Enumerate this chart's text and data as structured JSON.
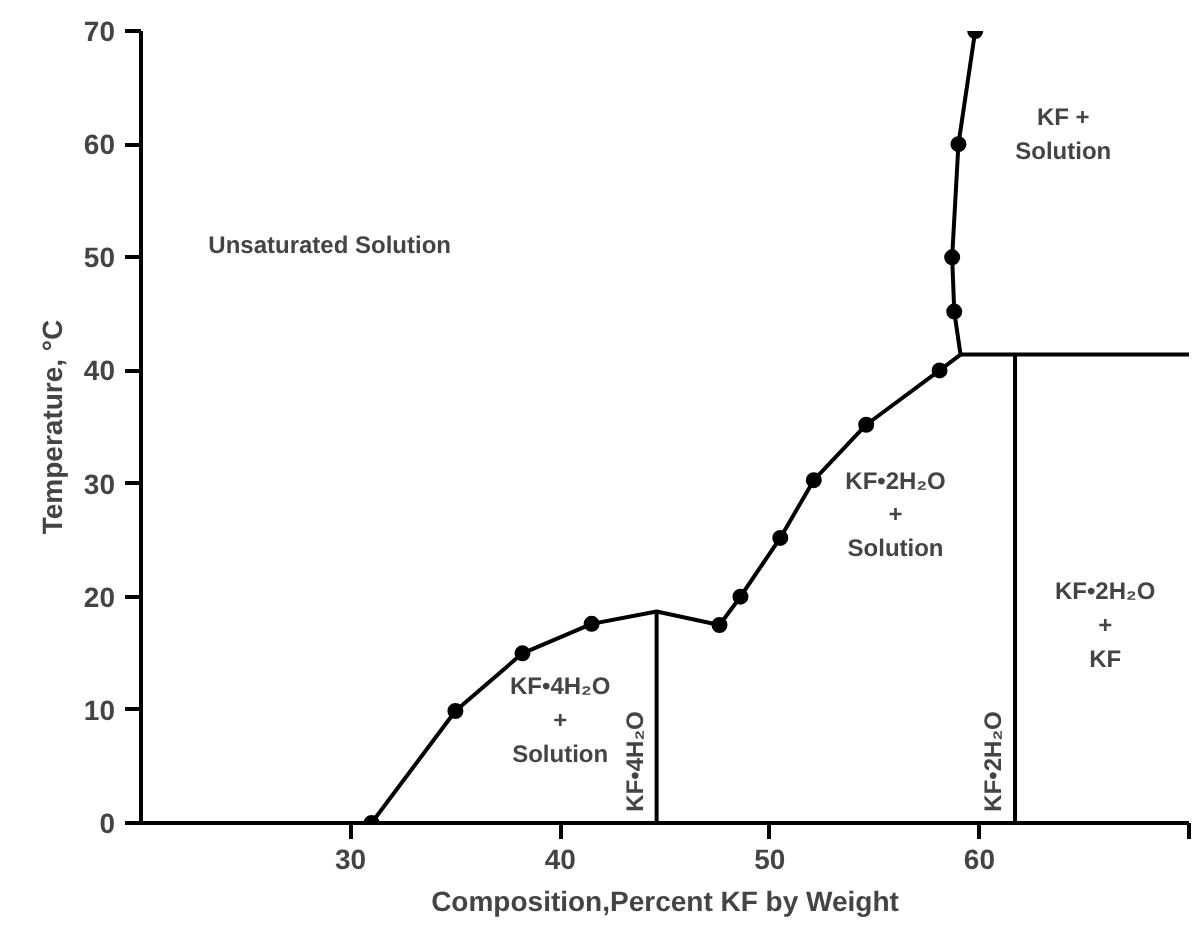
{
  "chart_data": {
    "type": "line",
    "xlabel": "Composition,Percent KF by Weight",
    "ylabel": "Temperature, °C",
    "xlim": [
      20,
      70
    ],
    "ylim": [
      0,
      70
    ],
    "xticks": [
      30,
      40,
      50,
      60,
      {
        "value": 70,
        "label": null
      }
    ],
    "yticks": [
      0,
      10,
      20,
      30,
      40,
      50,
      60,
      70
    ],
    "grid": false,
    "series": [
      {
        "color": "#000000",
        "marker": "none",
        "x": [
          31.0,
          35.0,
          38.2,
          41.5,
          44.6,
          47.6,
          48.6,
          50.5,
          52.1,
          54.6,
          58.1,
          59.1,
          58.8,
          58.7,
          59.0,
          59.8
        ],
        "values": [
          0,
          9.9,
          15.0,
          17.6,
          18.7,
          17.5,
          20.0,
          25.2,
          30.3,
          35.2,
          40.0,
          41.4,
          45.2,
          50.0,
          60.0,
          70.0
        ]
      },
      {
        "type": "scatter",
        "color": "#000000",
        "marker": "circle",
        "x": [
          31.0,
          35.0,
          38.2,
          41.5,
          47.6,
          48.6,
          50.5,
          52.1,
          54.6,
          58.1,
          58.8,
          58.7,
          59.0,
          59.8
        ],
        "values": [
          0,
          9.9,
          15.0,
          17.6,
          17.5,
          20.0,
          25.2,
          30.3,
          35.2,
          40.0,
          45.2,
          50.0,
          60.0,
          70.0
        ]
      },
      {
        "color": "#000000",
        "marker": "none",
        "name": "KF•4H₂O",
        "x": [
          44.6,
          44.6
        ],
        "values": [
          0,
          18.7
        ]
      },
      {
        "color": "#000000",
        "marker": "none",
        "name": "KF•2H₂O",
        "x": [
          61.7,
          61.7
        ],
        "values": [
          0,
          41.4
        ]
      },
      {
        "color": "#000000",
        "marker": "none",
        "x": [
          59.1,
          70
        ],
        "values": [
          41.4,
          41.4
        ]
      }
    ],
    "annotations": [
      "Unsaturated Solution",
      "KF +\nSolution",
      "KF•2H₂O\n+\nSolution",
      "KF•2H₂O\n+\nKF",
      "KF•4H₂O\n+\nSolution"
    ]
  }
}
